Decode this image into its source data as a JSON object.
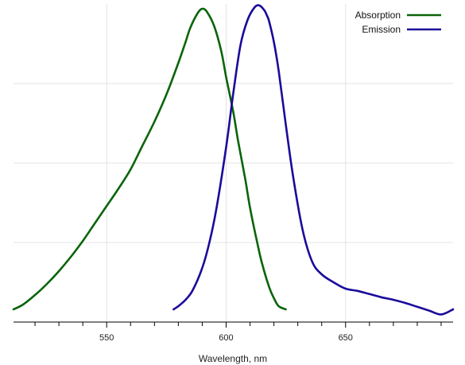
{
  "chart_data": {
    "type": "line",
    "title": "",
    "xlabel": "Wavelength, nm",
    "ylabel": "",
    "xlim": [
      511,
      695
    ],
    "ylim": [
      0,
      1.0
    ],
    "x_ticks": [
      550,
      600,
      650
    ],
    "x_tick_labels": [
      "550",
      "600",
      "650"
    ],
    "grid": true,
    "legend_position": "top-right",
    "series": [
      {
        "name": "Absorption",
        "color": "#0a640a",
        "x": [
          511,
          515,
          520,
          525,
          530,
          535,
          540,
          545,
          550,
          555,
          560,
          565,
          570,
          575,
          580,
          583,
          585,
          588,
          590,
          592,
          595,
          598,
          600,
          603,
          605,
          608,
          610,
          613,
          615,
          618,
          620,
          622,
          625
        ],
        "y": [
          0.04,
          0.055,
          0.085,
          0.12,
          0.16,
          0.205,
          0.255,
          0.31,
          0.365,
          0.42,
          0.48,
          0.555,
          0.63,
          0.715,
          0.815,
          0.88,
          0.925,
          0.97,
          0.985,
          0.975,
          0.93,
          0.85,
          0.77,
          0.66,
          0.57,
          0.45,
          0.36,
          0.25,
          0.185,
          0.11,
          0.075,
          0.05,
          0.04
        ]
      },
      {
        "name": "Emission",
        "color": "#1a0a9a",
        "x": [
          578,
          580,
          583,
          586,
          590,
          593,
          596,
          600,
          603,
          606,
          609,
          612,
          614,
          616,
          617,
          618,
          620,
          622,
          625,
          628,
          632,
          636,
          640,
          645,
          650,
          655,
          660,
          665,
          670,
          675,
          680,
          685,
          690,
          695
        ],
        "y": [
          0.04,
          0.05,
          0.07,
          0.1,
          0.17,
          0.25,
          0.36,
          0.55,
          0.72,
          0.87,
          0.95,
          0.99,
          0.995,
          0.98,
          0.965,
          0.945,
          0.88,
          0.79,
          0.62,
          0.46,
          0.29,
          0.19,
          0.15,
          0.125,
          0.105,
          0.098,
          0.088,
          0.078,
          0.07,
          0.06,
          0.048,
          0.036,
          0.024,
          0.04
        ]
      }
    ]
  }
}
